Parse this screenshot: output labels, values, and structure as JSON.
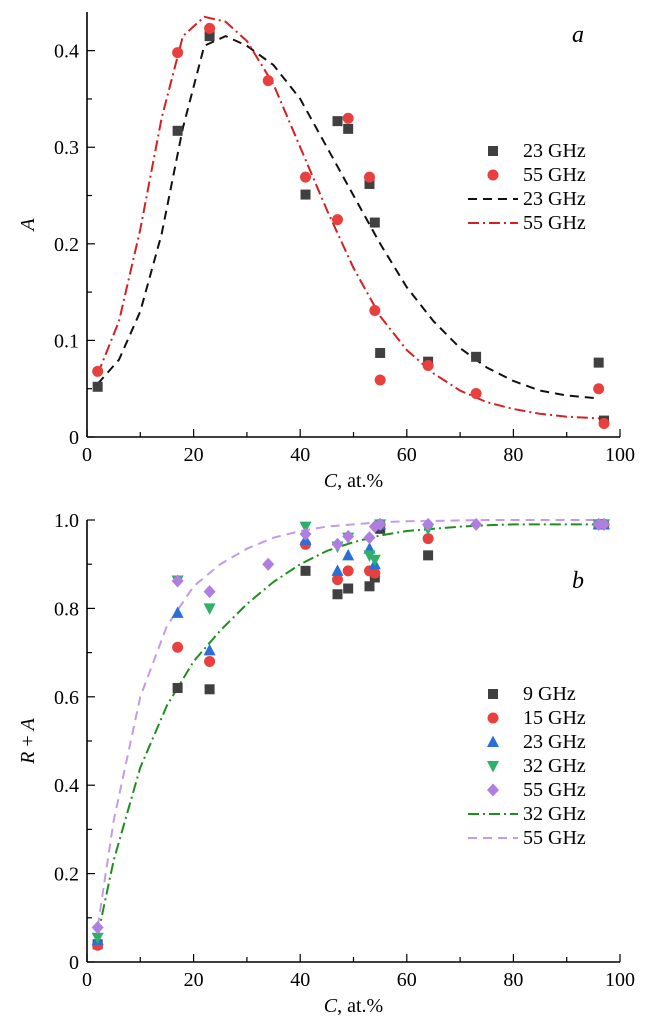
{
  "chart_data": [
    {
      "type": "scatter",
      "panel_label": "a",
      "xlabel_var": "C",
      "xlabel_unit": ", at.%",
      "ylabel_var": "A",
      "xlim": [
        0,
        100
      ],
      "ylim": [
        0,
        0.44
      ],
      "xticks": [
        0,
        20,
        40,
        60,
        80,
        100
      ],
      "yticks": [
        0,
        0.1,
        0.2,
        0.3,
        0.4
      ],
      "ytick_labels": [
        "0",
        "0.1",
        "0.2",
        "0.3",
        "0.4"
      ],
      "legend_position": "right",
      "series": [
        {
          "name": "23 GHz",
          "kind": "points",
          "marker": "square",
          "color": "#404040",
          "x": [
            2,
            17,
            23,
            41,
            47,
            49,
            53,
            54,
            55,
            64,
            73,
            96,
            97
          ],
          "y": [
            0.052,
            0.317,
            0.415,
            0.251,
            0.327,
            0.319,
            0.262,
            0.222,
            0.087,
            0.078,
            0.083,
            0.077,
            0.017
          ]
        },
        {
          "name": "55 GHz",
          "kind": "points",
          "marker": "circle",
          "color": "#e8403f",
          "x": [
            2,
            17,
            23,
            34,
            41,
            47,
            49,
            53,
            54,
            55,
            64,
            73,
            96,
            97
          ],
          "y": [
            0.068,
            0.398,
            0.423,
            0.369,
            0.269,
            0.225,
            0.33,
            0.269,
            0.131,
            0.059,
            0.074,
            0.045,
            0.05,
            0.014
          ]
        },
        {
          "name": "23 GHz",
          "kind": "line",
          "dash": "dashed",
          "color": "#111111",
          "x": [
            2,
            6,
            10,
            14,
            18,
            22,
            26,
            30,
            35,
            40,
            45,
            50,
            55,
            60,
            65,
            70,
            75,
            80,
            85,
            90,
            96
          ],
          "y": [
            0.055,
            0.08,
            0.13,
            0.21,
            0.32,
            0.405,
            0.415,
            0.405,
            0.385,
            0.35,
            0.3,
            0.25,
            0.2,
            0.155,
            0.12,
            0.092,
            0.072,
            0.058,
            0.048,
            0.043,
            0.04
          ]
        },
        {
          "name": "55 GHz",
          "kind": "line",
          "dash": "dashdot",
          "color": "#d42020",
          "x": [
            2,
            6,
            10,
            14,
            18,
            22,
            26,
            30,
            35,
            40,
            45,
            50,
            55,
            60,
            65,
            70,
            75,
            80,
            85,
            90,
            97
          ],
          "y": [
            0.065,
            0.12,
            0.215,
            0.33,
            0.415,
            0.435,
            0.43,
            0.41,
            0.365,
            0.3,
            0.235,
            0.175,
            0.125,
            0.09,
            0.066,
            0.048,
            0.036,
            0.029,
            0.024,
            0.021,
            0.019
          ]
        }
      ]
    },
    {
      "type": "scatter",
      "panel_label": "b",
      "xlabel_var": "C",
      "xlabel_unit": ", at.%",
      "ylabel_var": "R",
      "ylabel_rest": " + A",
      "xlim": [
        0,
        100
      ],
      "ylim": [
        0,
        1.0
      ],
      "xticks": [
        0,
        20,
        40,
        60,
        80,
        100
      ],
      "yticks": [
        0,
        0.2,
        0.4,
        0.6,
        0.8,
        1.0
      ],
      "ytick_labels": [
        "0",
        "0.2",
        "0.4",
        "0.6",
        "0.8",
        "1.0"
      ],
      "legend_position": "right",
      "series": [
        {
          "name": "9 GHz",
          "kind": "points",
          "marker": "square",
          "color": "#404040",
          "x": [
            2,
            17,
            23,
            41,
            47,
            49,
            53,
            54,
            55,
            64,
            96,
            97
          ],
          "y": [
            0.04,
            0.62,
            0.617,
            0.885,
            0.832,
            0.845,
            0.85,
            0.87,
            0.98,
            0.92,
            0.99,
            0.99
          ]
        },
        {
          "name": "15 GHz",
          "kind": "points",
          "marker": "circle",
          "color": "#e8403f",
          "x": [
            2,
            17,
            23,
            41,
            47,
            49,
            53,
            54,
            55,
            64,
            96,
            97
          ],
          "y": [
            0.038,
            0.712,
            0.68,
            0.945,
            0.865,
            0.885,
            0.885,
            0.88,
            0.99,
            0.958,
            0.99,
            0.99
          ]
        },
        {
          "name": "23 GHz",
          "kind": "points",
          "marker": "triangle-up",
          "color": "#2a6fd6",
          "x": [
            2,
            17,
            23,
            41,
            47,
            49,
            53,
            54,
            55,
            96,
            97
          ],
          "y": [
            0.05,
            0.79,
            0.705,
            0.955,
            0.885,
            0.92,
            0.935,
            0.9,
            0.99,
            0.99,
            0.99
          ]
        },
        {
          "name": "32 GHz",
          "kind": "points",
          "marker": "triangle-down",
          "color": "#2eb06a",
          "x": [
            2,
            17,
            23,
            41,
            47,
            49,
            53,
            54,
            55,
            64,
            96,
            97
          ],
          "y": [
            0.055,
            0.863,
            0.8,
            0.985,
            0.94,
            0.96,
            0.92,
            0.91,
            0.99,
            0.98,
            0.99,
            0.99
          ]
        },
        {
          "name": "55 GHz",
          "kind": "points",
          "marker": "diamond",
          "color": "#b07ee0",
          "x": [
            2,
            17,
            23,
            34,
            41,
            47,
            49,
            53,
            54,
            55,
            64,
            73,
            96,
            97
          ],
          "y": [
            0.078,
            0.862,
            0.838,
            0.9,
            0.968,
            0.945,
            0.963,
            0.96,
            0.985,
            0.99,
            0.99,
            0.99,
            0.99,
            0.99
          ]
        },
        {
          "name": "32 GHz",
          "kind": "line",
          "dash": "dashdot",
          "color": "#1e8f1e",
          "x": [
            2,
            5,
            10,
            15,
            20,
            25,
            30,
            35,
            40,
            45,
            50,
            55,
            60,
            65,
            70,
            75,
            80,
            85,
            90,
            97
          ],
          "y": [
            0.06,
            0.23,
            0.44,
            0.58,
            0.68,
            0.75,
            0.81,
            0.86,
            0.9,
            0.93,
            0.95,
            0.965,
            0.975,
            0.98,
            0.985,
            0.988,
            0.99,
            0.99,
            0.99,
            0.99
          ]
        },
        {
          "name": "55 GHz",
          "kind": "line",
          "dash": "dashed",
          "color": "#c39be8",
          "x": [
            2,
            5,
            10,
            15,
            20,
            25,
            30,
            35,
            40,
            45,
            50,
            55,
            60,
            65,
            70,
            75,
            80,
            85,
            90,
            97
          ],
          "y": [
            0.08,
            0.32,
            0.6,
            0.76,
            0.85,
            0.9,
            0.935,
            0.96,
            0.975,
            0.985,
            0.99,
            0.995,
            0.997,
            0.998,
            0.999,
            1.0,
            1.0,
            1.0,
            1.0,
            1.0
          ]
        }
      ]
    }
  ]
}
